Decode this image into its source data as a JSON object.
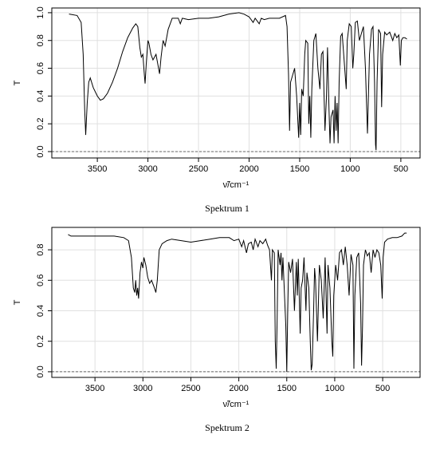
{
  "chart_data": [
    {
      "type": "line",
      "caption": "Spektrum 1",
      "x_label": "ν̃/cm⁻¹",
      "y_label": "T",
      "color": "#000000",
      "grid": true,
      "hline": 0,
      "hline_dashed": true,
      "xlim": [
        3950,
        310
      ],
      "ylim": [
        -0.046,
        1.034
      ],
      "xticks": [
        3500,
        3000,
        2500,
        2000,
        1500,
        1000,
        500
      ],
      "yticks": [
        {
          "value": 0,
          "label": "0.0"
        },
        {
          "value": 0.2,
          "label": "0.2"
        },
        {
          "value": 0.4,
          "label": "0.4"
        },
        {
          "value": 0.6,
          "label": "0.6"
        },
        {
          "value": 0.8,
          "label": "0.8"
        },
        {
          "value": 1,
          "label": "1.0"
        }
      ],
      "x": [
        3780,
        3700,
        3660,
        3640,
        3625,
        3615,
        3600,
        3585,
        3570,
        3540,
        3500,
        3470,
        3440,
        3400,
        3350,
        3300,
        3250,
        3200,
        3150,
        3120,
        3100,
        3080,
        3065,
        3050,
        3035,
        3028,
        3015,
        3000,
        2990,
        2970,
        2950,
        2920,
        2900,
        2885,
        2870,
        2850,
        2830,
        2800,
        2760,
        2700,
        2680,
        2660,
        2600,
        2500,
        2400,
        2300,
        2200,
        2100,
        2050,
        2000,
        1960,
        1940,
        1900,
        1880,
        1850,
        1800,
        1700,
        1640,
        1625,
        1610,
        1600,
        1590,
        1570,
        1550,
        1530,
        1510,
        1500,
        1490,
        1480,
        1465,
        1450,
        1440,
        1420,
        1410,
        1400,
        1390,
        1380,
        1360,
        1340,
        1320,
        1300,
        1285,
        1270,
        1250,
        1235,
        1225,
        1210,
        1200,
        1190,
        1170,
        1160,
        1150,
        1140,
        1130,
        1120,
        1110,
        1095,
        1080,
        1060,
        1040,
        1030,
        1010,
        990,
        975,
        965,
        950,
        930,
        910,
        890,
        870,
        850,
        830,
        810,
        790,
        775,
        760,
        750,
        745,
        735,
        720,
        700,
        690,
        680,
        660,
        640,
        610,
        580,
        560,
        540,
        520,
        505,
        495,
        480,
        460,
        440
      ],
      "values": [
        0.99,
        0.98,
        0.93,
        0.7,
        0.3,
        0.12,
        0.35,
        0.5,
        0.53,
        0.46,
        0.4,
        0.37,
        0.38,
        0.42,
        0.5,
        0.6,
        0.72,
        0.82,
        0.89,
        0.92,
        0.9,
        0.75,
        0.68,
        0.7,
        0.55,
        0.49,
        0.65,
        0.8,
        0.78,
        0.7,
        0.66,
        0.7,
        0.62,
        0.56,
        0.68,
        0.8,
        0.76,
        0.88,
        0.96,
        0.96,
        0.92,
        0.96,
        0.95,
        0.96,
        0.96,
        0.97,
        0.99,
        1.0,
        0.99,
        0.97,
        0.93,
        0.96,
        0.92,
        0.96,
        0.95,
        0.96,
        0.96,
        0.98,
        0.9,
        0.55,
        0.15,
        0.5,
        0.55,
        0.6,
        0.4,
        0.1,
        0.35,
        0.12,
        0.45,
        0.4,
        0.7,
        0.8,
        0.78,
        0.2,
        0.4,
        0.1,
        0.45,
        0.8,
        0.85,
        0.6,
        0.45,
        0.7,
        0.72,
        0.15,
        0.4,
        0.75,
        0.3,
        0.06,
        0.25,
        0.3,
        0.06,
        0.4,
        0.15,
        0.35,
        0.06,
        0.5,
        0.83,
        0.85,
        0.65,
        0.45,
        0.8,
        0.92,
        0.9,
        0.6,
        0.7,
        0.93,
        0.94,
        0.8,
        0.85,
        0.9,
        0.6,
        0.13,
        0.7,
        0.88,
        0.9,
        0.5,
        0.05,
        0.01,
        0.5,
        0.88,
        0.85,
        0.32,
        0.7,
        0.86,
        0.84,
        0.86,
        0.8,
        0.85,
        0.82,
        0.84,
        0.62,
        0.8,
        0.82,
        0.82,
        0.81
      ]
    },
    {
      "type": "line",
      "caption": "Spektrum 2",
      "x_label": "ν̃/cm⁻¹",
      "y_label": "T",
      "color": "#000000",
      "grid": true,
      "hline": 0,
      "hline_dashed": true,
      "xlim": [
        3950,
        110
      ],
      "ylim": [
        -0.037,
        0.947
      ],
      "xticks": [
        3500,
        3000,
        2500,
        2000,
        1500,
        1000,
        500
      ],
      "yticks": [
        {
          "value": 0,
          "label": "0.0"
        },
        {
          "value": 0.2,
          "label": "0.2"
        },
        {
          "value": 0.4,
          "label": "0.4"
        },
        {
          "value": 0.6,
          "label": "0.6"
        },
        {
          "value": 0.8,
          "label": "0.8"
        }
      ],
      "x": [
        3780,
        3750,
        3700,
        3600,
        3500,
        3400,
        3300,
        3200,
        3150,
        3120,
        3100,
        3085,
        3075,
        3065,
        3055,
        3045,
        3030,
        3015,
        3000,
        2990,
        2970,
        2950,
        2930,
        2910,
        2880,
        2865,
        2850,
        2830,
        2800,
        2750,
        2700,
        2600,
        2500,
        2400,
        2300,
        2200,
        2100,
        2050,
        2000,
        1970,
        1950,
        1920,
        1900,
        1870,
        1850,
        1830,
        1800,
        1780,
        1750,
        1720,
        1700,
        1680,
        1660,
        1650,
        1630,
        1620,
        1610,
        1600,
        1590,
        1570,
        1560,
        1550,
        1540,
        1510,
        1500,
        1490,
        1480,
        1460,
        1440,
        1420,
        1400,
        1390,
        1380,
        1360,
        1350,
        1335,
        1320,
        1300,
        1290,
        1270,
        1255,
        1245,
        1235,
        1220,
        1210,
        1200,
        1180,
        1170,
        1160,
        1140,
        1120,
        1100,
        1080,
        1070,
        1050,
        1030,
        1020,
        1010,
        990,
        970,
        950,
        930,
        910,
        890,
        870,
        850,
        830,
        810,
        800,
        790,
        770,
        750,
        730,
        720,
        710,
        700,
        680,
        660,
        640,
        620,
        600,
        580,
        560,
        540,
        520,
        505,
        495,
        480,
        450,
        400,
        350,
        300,
        270,
        250
      ],
      "values": [
        0.9,
        0.89,
        0.89,
        0.89,
        0.89,
        0.89,
        0.89,
        0.88,
        0.86,
        0.75,
        0.55,
        0.52,
        0.6,
        0.5,
        0.55,
        0.48,
        0.65,
        0.72,
        0.68,
        0.75,
        0.7,
        0.62,
        0.58,
        0.6,
        0.55,
        0.52,
        0.6,
        0.8,
        0.84,
        0.86,
        0.87,
        0.86,
        0.85,
        0.86,
        0.87,
        0.88,
        0.88,
        0.86,
        0.87,
        0.82,
        0.86,
        0.78,
        0.84,
        0.85,
        0.8,
        0.87,
        0.82,
        0.86,
        0.84,
        0.87,
        0.83,
        0.8,
        0.6,
        0.8,
        0.78,
        0.2,
        0.02,
        0.35,
        0.8,
        0.7,
        0.78,
        0.6,
        0.75,
        0.3,
        0.0,
        0.4,
        0.72,
        0.65,
        0.74,
        0.4,
        0.72,
        0.5,
        0.74,
        0.25,
        0.55,
        0.6,
        0.75,
        0.4,
        0.65,
        0.55,
        0.2,
        0.01,
        0.05,
        0.4,
        0.68,
        0.6,
        0.2,
        0.45,
        0.7,
        0.6,
        0.35,
        0.75,
        0.25,
        0.7,
        0.55,
        0.2,
        0.1,
        0.5,
        0.7,
        0.6,
        0.78,
        0.8,
        0.7,
        0.82,
        0.7,
        0.5,
        0.77,
        0.7,
        0.02,
        0.5,
        0.75,
        0.78,
        0.45,
        0.04,
        0.3,
        0.7,
        0.8,
        0.76,
        0.78,
        0.65,
        0.8,
        0.75,
        0.8,
        0.78,
        0.7,
        0.48,
        0.75,
        0.85,
        0.87,
        0.88,
        0.88,
        0.89,
        0.91,
        0.91
      ]
    }
  ]
}
